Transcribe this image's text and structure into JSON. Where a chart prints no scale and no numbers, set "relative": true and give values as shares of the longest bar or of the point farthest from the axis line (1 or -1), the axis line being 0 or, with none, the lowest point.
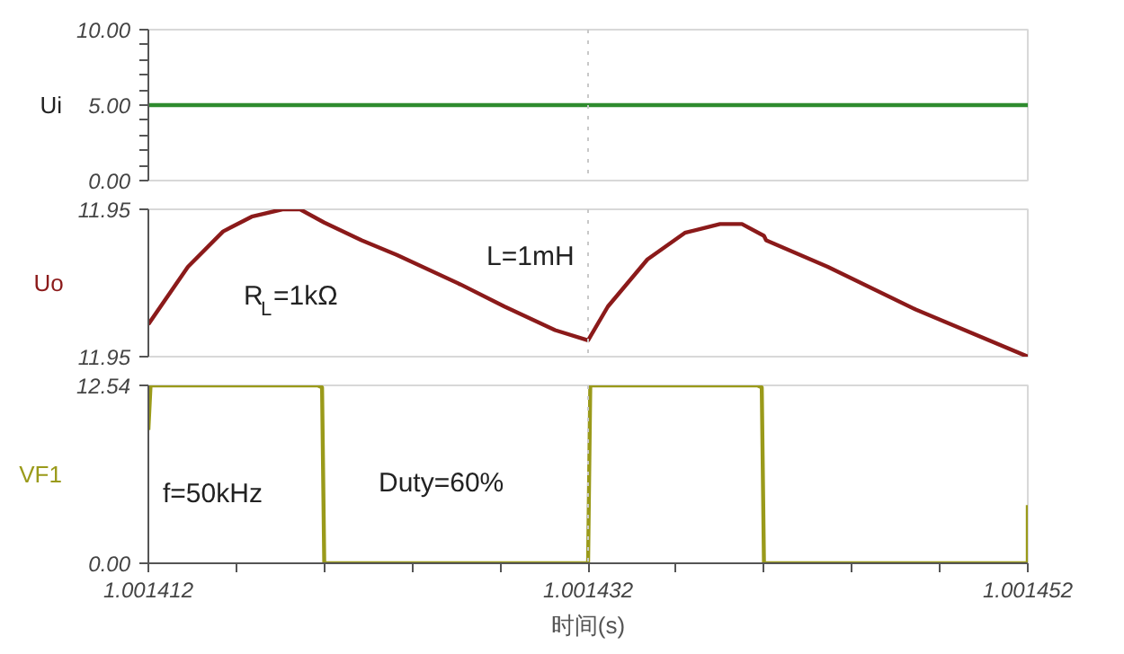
{
  "chart_data": [
    {
      "type": "line",
      "ylabel": "Ui",
      "xlim": [
        1.001412,
        1.001452
      ],
      "xticks": [
        {
          "value": 1.001412,
          "label": null
        },
        {
          "value": 1.001432,
          "label": null
        },
        {
          "value": 1.001452,
          "label": null
        }
      ],
      "ylim": [
        0,
        10
      ],
      "yticks": [
        {
          "value": 0,
          "label": "0.00"
        },
        {
          "value": 5,
          "label": "5.00"
        },
        {
          "value": 10,
          "label": "10.00"
        },
        {
          "value": 1,
          "label": null
        },
        {
          "value": 2,
          "label": null
        },
        {
          "value": 3,
          "label": null
        },
        {
          "value": 4,
          "label": null
        },
        {
          "value": 6,
          "label": null
        },
        {
          "value": 7,
          "label": null
        },
        {
          "value": 8,
          "label": null
        },
        {
          "value": 9,
          "label": null
        }
      ],
      "tick_labels": "y",
      "grid": false,
      "ref_lines": [
        {
          "axis": "x",
          "value": 1.001432,
          "color": "#c8c8c8",
          "line_style": "dotted"
        }
      ],
      "series": [
        {
          "color": "#2e8b2e",
          "x": [
            1.001412,
            1.001452
          ],
          "values": [
            5,
            5
          ]
        }
      ]
    },
    {
      "type": "line",
      "ylabel": "Uo",
      "relative": true,
      "xlim": [
        1.001412,
        1.001452
      ],
      "xticks": [
        {
          "value": 1.001412,
          "label": null
        },
        {
          "value": 1.001432,
          "label": null
        },
        {
          "value": 1.001452,
          "label": null
        }
      ],
      "tick_labels": "y",
      "grid": false,
      "ref_lines": [
        {
          "axis": "x",
          "value": 1.001432,
          "color": "#c8c8c8",
          "line_style": "dotted"
        }
      ],
      "annotations": [
        "R$_{L}$=1kΩ",
        "L=1mH",
        "11.95",
        "11.95"
      ],
      "series": [
        {
          "color": "#8b1a1a",
          "x": [
            1.001412,
            1.0014138,
            1.0014154,
            1.0014167,
            1.0014181,
            1.0014189,
            1.00142,
            1.0014217,
            1.0014233,
            1.0014262,
            1.0014282,
            1.0014305,
            1.001432,
            1.0014329,
            1.0014347,
            1.0014364,
            1.001438,
            1.001439,
            1.00144,
            1.0014401,
            1.0014429,
            1.0014469,
            1.001452
          ],
          "values": [
            0.22,
            0.61,
            0.85,
            0.95,
            1,
            1,
            0.91,
            0.79,
            0.69,
            0.49,
            0.34,
            0.18,
            0.11,
            0.34,
            0.66,
            0.84,
            0.9,
            0.9,
            0.82,
            0.79,
            0.61,
            0.32,
            0
          ]
        }
      ]
    },
    {
      "type": "line",
      "ylabel": "VF1",
      "xlabel": "时间(s)",
      "xlim": [
        1.001412,
        1.001452
      ],
      "xticks": [
        1.001412,
        1.001432,
        1.001452,
        {
          "value": 1.001416,
          "label": null
        },
        {
          "value": 1.00142,
          "label": null
        },
        {
          "value": 1.001424,
          "label": null
        },
        {
          "value": 1.001428,
          "label": null
        },
        {
          "value": 1.001436,
          "label": null
        },
        {
          "value": 1.00144,
          "label": null
        },
        {
          "value": 1.001444,
          "label": null
        },
        {
          "value": 1.001448,
          "label": null
        }
      ],
      "ylim": [
        0,
        12.54
      ],
      "yticks": [
        {
          "value": 0,
          "label": "0.00"
        },
        12.54
      ],
      "grid": false,
      "ref_lines": [
        {
          "axis": "x",
          "value": 1.001432,
          "color": "#c8c8c8",
          "line_style": "dotted"
        }
      ],
      "annotations": [
        "f=50kHz",
        "Duty=60%"
      ],
      "series": [
        {
          "color": "#9a9a1a",
          "x": [
            1.001412,
            1.0014121,
            1.0014197,
            1.0014199,
            1.00142,
            1.001432,
            1.0014321,
            1.0014397,
            1.0014399,
            1.00144,
            1.001452,
            1.001452
          ],
          "values": [
            9.4,
            12.54,
            12.54,
            12.4,
            0,
            0,
            12.54,
            12.54,
            12.4,
            0,
            0,
            4.1
          ]
        }
      ]
    }
  ]
}
